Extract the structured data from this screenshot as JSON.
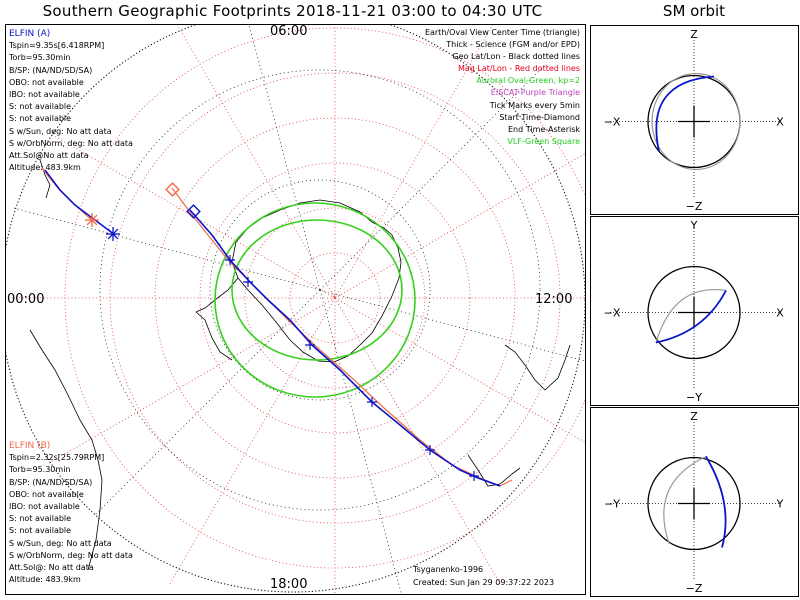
{
  "title": "Southern Geographic Footprints 2018-11-21 03:00 to 04:30 UTC",
  "orbit_title": "SM orbit",
  "mlt_labels": {
    "top": "06:00",
    "left": "00:00",
    "right": "12:00",
    "bottom": "18:00"
  },
  "elfin_a": {
    "name": "ELFIN (A)",
    "lines": [
      "Tspin=9.35s[6.418RPM]",
      "Torb=95.30min",
      "B/SP: (NA/ND/SD/SA)",
      "OBO: not available",
      "IBO: not available",
      "S: not available",
      "S: not available",
      "S w/Sun, deg: No att data",
      "S w/OrbNorm, deg: No att data",
      "Att.Sol@No att data",
      "Altitude: 483.9km"
    ]
  },
  "elfin_b": {
    "name": "ELFIN (B)",
    "lines": [
      "Tspin=2.32s[25.79RPM]",
      "Torb=95.30min",
      "B/SP: (NA/ND/SD/SA)",
      "OBO: not available",
      "IBO: not available",
      "S: not available",
      "S: not available",
      "S w/Sun, deg: No att data",
      "S w/OrbNorm, deg: No att data",
      "Att.Sol@: No att data",
      "Altitude: 483.9km"
    ]
  },
  "legend": {
    "lines": [
      {
        "text": "Earth/Oval View Center Time (triangle)",
        "color": "#000000"
      },
      {
        "text": "Thick - Science (FGM and/or EPD)",
        "color": "#000000"
      },
      {
        "text": "Geo Lat/Lon - Black dotted lines",
        "color": "#000000"
      },
      {
        "text": "Mag Lat/Lon - Red dotted lines",
        "color": "#e8001c"
      },
      {
        "text": "Auroral Oval-Green, kp=2",
        "color": "#22cc22"
      },
      {
        "text": "EISCAT-Purple Triangle",
        "color": "#c040c0"
      },
      {
        "text": "Tick Marks every 5min",
        "color": "#000000"
      },
      {
        "text": "Start Time-Diamond",
        "color": "#000000"
      },
      {
        "text": "End Time-Asterisk",
        "color": "#000000"
      },
      {
        "text": "VLF-Green Square",
        "color": "#22cc22"
      }
    ]
  },
  "footer": {
    "model": "Tsyganenko-1996",
    "created": "Created: Sun Jan 29 09:37:22 2023"
  },
  "colors": {
    "elfin_a": "#0a14c8",
    "elfin_b": "#f06a4a",
    "oval": "#36d11c",
    "mag_grid": "#e04040"
  },
  "orbit_panels": [
    {
      "top": "Z",
      "bottom": "−Z",
      "left": "−X",
      "right": "X"
    },
    {
      "top": "Y",
      "bottom": "−Y",
      "left": "−X",
      "right": "X"
    },
    {
      "top": "Z",
      "bottom": "−Z",
      "left": "−Y",
      "right": "Y"
    }
  ],
  "chart_data": {
    "type": "line",
    "projection": "polar map, southern hemisphere",
    "series": [
      {
        "name": "ELFIN (A)",
        "color": "#0a14c8"
      },
      {
        "name": "ELFIN (B)",
        "color": "#f06a4a"
      }
    ]
  }
}
